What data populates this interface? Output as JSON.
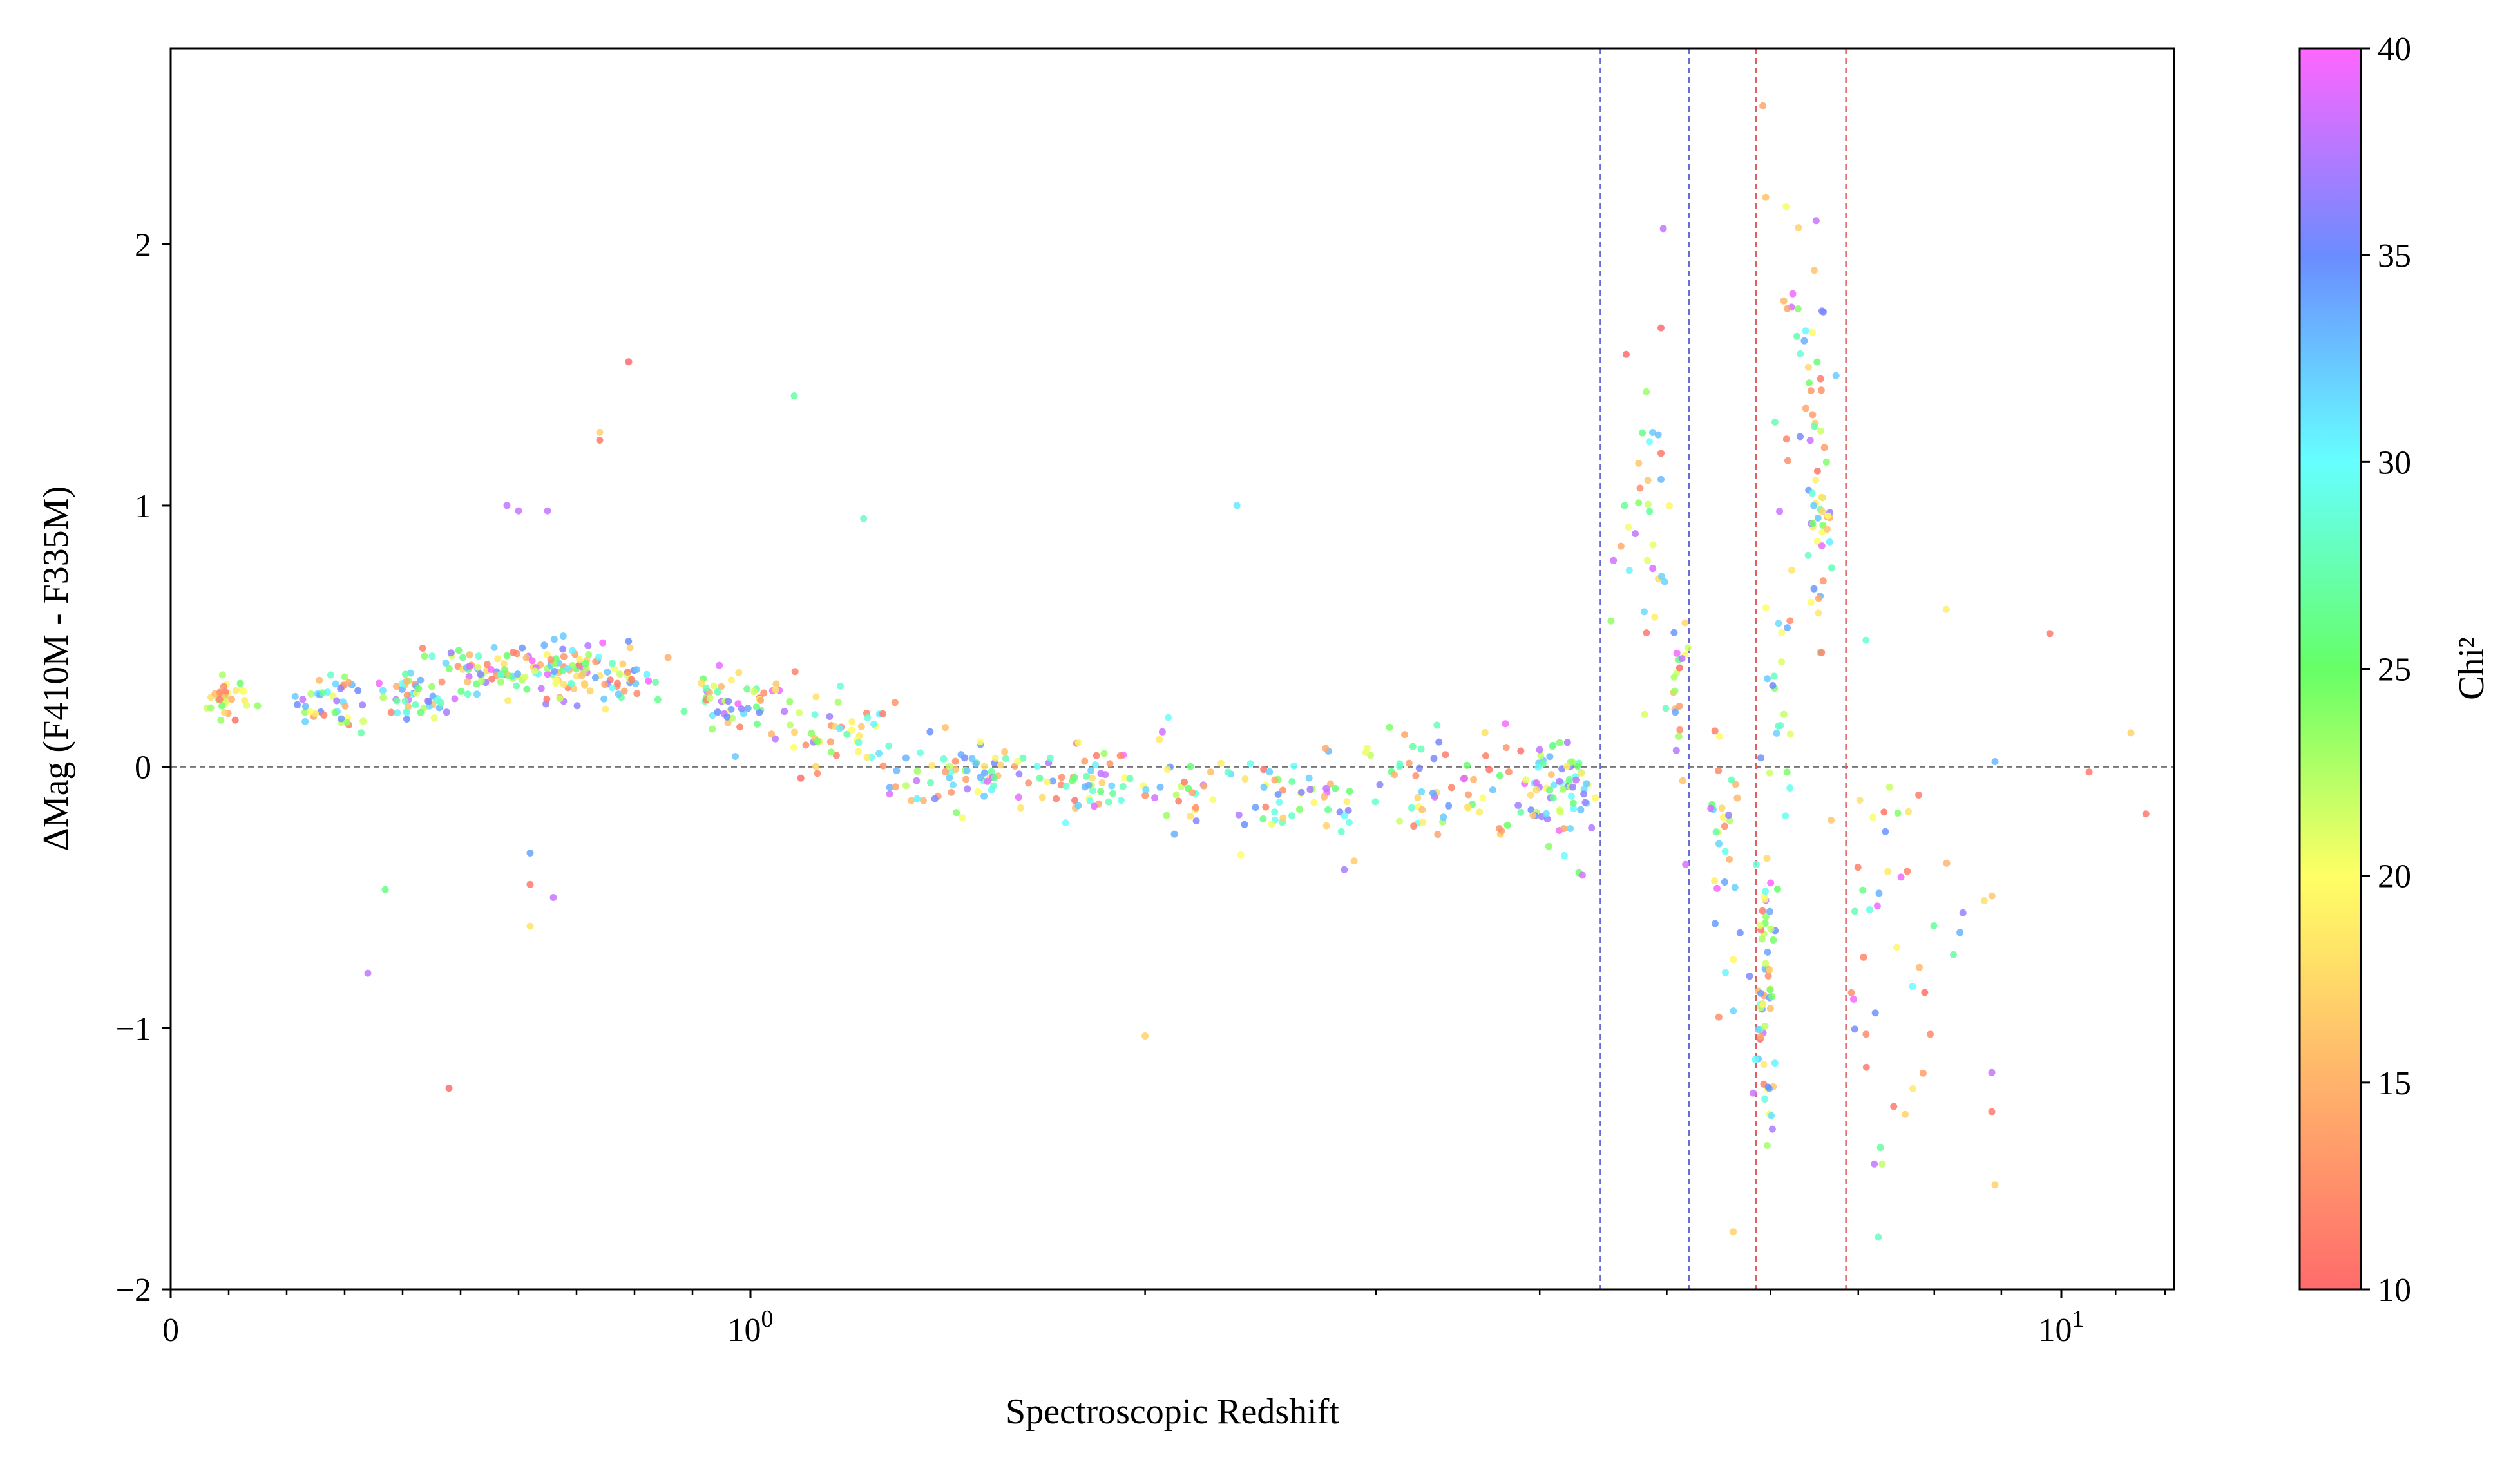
{
  "chart_data": {
    "type": "scatter",
    "title": "",
    "xlabel": "Spectroscopic Redshift",
    "ylabel": "ΔMag (F410M - F335M)",
    "colorbar_label": "Chi²",
    "x_scale": "symlog",
    "x_tick_labels": [
      "0",
      "10^0",
      "10^1"
    ],
    "ylim": [
      -2,
      2.75
    ],
    "y_ticks": [
      -2,
      -1,
      0,
      1,
      2
    ],
    "y_tick_labels": [
      "−2",
      "−1",
      "0",
      "1",
      "2"
    ],
    "colorbar_range": [
      10,
      40
    ],
    "colorbar_ticks": [
      10,
      15,
      20,
      25,
      30,
      35,
      40
    ],
    "colormap": [
      "#ff6b6b",
      "#ffb36b",
      "#ffff66",
      "#66ff66",
      "#66ffff",
      "#6b8cff",
      "#ff66ff"
    ],
    "reference_lines": {
      "horizontal_y": 0,
      "blue_vertical_x": [
        4.45,
        5.2
      ],
      "red_vertical_x": [
        5.85,
        6.85
      ]
    },
    "series": [
      {
        "clusters": [
          {
            "x": 0.1,
            "y": 0.27,
            "n": 30,
            "sx": 0.018,
            "sy": 0.05,
            "chi": [
              10,
              25
            ]
          },
          {
            "x": 0.28,
            "y": 0.25,
            "n": 40,
            "sx": 0.03,
            "sy": 0.06,
            "chi": [
              10,
              40
            ]
          },
          {
            "x": 0.42,
            "y": 0.28,
            "n": 50,
            "sx": 0.035,
            "sy": 0.06,
            "chi": [
              10,
              40
            ]
          },
          {
            "x": 0.54,
            "y": 0.38,
            "n": 40,
            "sx": 0.04,
            "sy": 0.05,
            "chi": [
              10,
              40
            ]
          },
          {
            "x": 0.66,
            "y": 0.37,
            "n": 80,
            "sx": 0.05,
            "sy": 0.05,
            "chi": [
              10,
              40
            ]
          },
          {
            "x": 0.78,
            "y": 0.36,
            "n": 40,
            "sx": 0.04,
            "sy": 0.06,
            "chi": [
              10,
              40
            ]
          },
          {
            "x": 0.98,
            "y": 0.25,
            "n": 50,
            "sx": 0.05,
            "sy": 0.05,
            "chi": [
              10,
              40
            ]
          },
          {
            "x": 1.15,
            "y": 0.12,
            "n": 50,
            "sx": 0.07,
            "sy": 0.07,
            "chi": [
              10,
              40
            ]
          },
          {
            "x": 1.45,
            "y": -0.03,
            "n": 60,
            "sx": 0.1,
            "sy": 0.06,
            "chi": [
              10,
              40
            ]
          },
          {
            "x": 1.75,
            "y": -0.05,
            "n": 50,
            "sx": 0.12,
            "sy": 0.07,
            "chi": [
              10,
              40
            ]
          },
          {
            "x": 2.2,
            "y": -0.1,
            "n": 50,
            "sx": 0.18,
            "sy": 0.1,
            "chi": [
              10,
              40
            ]
          },
          {
            "x": 2.7,
            "y": -0.12,
            "n": 40,
            "sx": 0.2,
            "sy": 0.1,
            "chi": [
              10,
              40
            ]
          },
          {
            "x": 3.3,
            "y": -0.05,
            "n": 40,
            "sx": 0.22,
            "sy": 0.1,
            "chi": [
              10,
              40
            ]
          },
          {
            "x": 3.8,
            "y": -0.07,
            "n": 40,
            "sx": 0.25,
            "sy": 0.12,
            "chi": [
              10,
              40
            ]
          },
          {
            "x": 4.2,
            "y": -0.1,
            "n": 50,
            "sx": 0.12,
            "sy": 0.12,
            "chi": [
              10,
              40
            ]
          },
          {
            "x": 4.8,
            "y": 1.0,
            "n": 30,
            "sx": 0.12,
            "sy": 0.35,
            "chi": [
              10,
              40
            ]
          },
          {
            "x": 5.1,
            "y": 0.3,
            "n": 20,
            "sx": 0.06,
            "sy": 0.2,
            "chi": [
              10,
              40
            ]
          },
          {
            "x": 5.5,
            "y": -0.3,
            "n": 30,
            "sx": 0.12,
            "sy": 0.25,
            "chi": [
              10,
              40
            ]
          },
          {
            "x": 5.95,
            "y": -0.85,
            "n": 60,
            "sx": 0.06,
            "sy": 0.3,
            "chi": [
              10,
              40
            ]
          },
          {
            "x": 6.05,
            "y": 0.3,
            "n": 20,
            "sx": 0.1,
            "sy": 0.2,
            "chi": [
              10,
              40
            ]
          },
          {
            "x": 6.3,
            "y": 1.5,
            "n": 25,
            "sx": 0.12,
            "sy": 0.35,
            "chi": [
              10,
              40
            ]
          },
          {
            "x": 6.55,
            "y": 1.15,
            "n": 45,
            "sx": 0.08,
            "sy": 0.35,
            "chi": [
              10,
              40
            ]
          },
          {
            "x": 7.3,
            "y": -0.6,
            "n": 30,
            "sx": 0.35,
            "sy": 0.5,
            "chi": [
              10,
              40
            ]
          },
          {
            "x": 8.4,
            "y": -0.6,
            "n": 10,
            "sx": 0.4,
            "sy": 0.5,
            "chi": [
              10,
              40
            ]
          }
        ],
        "points": [
          {
            "x": 0.79,
            "y": 1.55,
            "chi": 10
          },
          {
            "x": 0.74,
            "y": 1.28,
            "chi": 17
          },
          {
            "x": 0.74,
            "y": 1.25,
            "chi": 11
          },
          {
            "x": 1.08,
            "y": 1.42,
            "chi": 27
          },
          {
            "x": 1.22,
            "y": 0.95,
            "chi": 28
          },
          {
            "x": 0.58,
            "y": 1.0,
            "chi": 38
          },
          {
            "x": 0.6,
            "y": 0.98,
            "chi": 38
          },
          {
            "x": 0.65,
            "y": 0.98,
            "chi": 38
          },
          {
            "x": 2.35,
            "y": 1.0,
            "chi": 31
          },
          {
            "x": 0.48,
            "y": -1.23,
            "chi": 10
          },
          {
            "x": 0.34,
            "y": -0.79,
            "chi": 38
          },
          {
            "x": 0.37,
            "y": -0.47,
            "chi": 26
          },
          {
            "x": 0.62,
            "y": -0.61,
            "chi": 18
          },
          {
            "x": 0.62,
            "y": -0.33,
            "chi": 34
          },
          {
            "x": 0.62,
            "y": -0.45,
            "chi": 11
          },
          {
            "x": 0.66,
            "y": -0.5,
            "chi": 38
          },
          {
            "x": 2.0,
            "y": -1.03,
            "chi": 17
          },
          {
            "x": 9.8,
            "y": 0.51,
            "chi": 11
          },
          {
            "x": 10.5,
            "y": -0.02,
            "chi": 11
          },
          {
            "x": 11.3,
            "y": 0.13,
            "chi": 17
          },
          {
            "x": 11.6,
            "y": -0.18,
            "chi": 11
          },
          {
            "x": 5.92,
            "y": 2.53,
            "chi": 14
          },
          {
            "x": 5.95,
            "y": 2.18,
            "chi": 16
          },
          {
            "x": 4.97,
            "y": 2.06,
            "chi": 38
          },
          {
            "x": 6.5,
            "y": 2.09,
            "chi": 38
          },
          {
            "x": 5.62,
            "y": -1.78,
            "chi": 17
          },
          {
            "x": 7.25,
            "y": -1.8,
            "chi": 28
          },
          {
            "x": 8.9,
            "y": -1.6,
            "chi": 17
          },
          {
            "x": 7.3,
            "y": -1.52,
            "chi": 22
          },
          {
            "x": 7.2,
            "y": -1.52,
            "chi": 38
          },
          {
            "x": 8.85,
            "y": -1.32,
            "chi": 11
          },
          {
            "x": 8.85,
            "y": -1.17,
            "chi": 38
          },
          {
            "x": 7.6,
            "y": -1.33,
            "chi": 17
          },
          {
            "x": 7.45,
            "y": -1.3,
            "chi": 11
          },
          {
            "x": 7.7,
            "y": -0.84,
            "chi": 30
          },
          {
            "x": 7.1,
            "y": -1.15,
            "chi": 11
          },
          {
            "x": 4.95,
            "y": 1.68,
            "chi": 10
          },
          {
            "x": 4.95,
            "y": 1.1,
            "chi": 33
          },
          {
            "x": 4.95,
            "y": 1.2,
            "chi": 11
          },
          {
            "x": 8.9,
            "y": 0.02,
            "chi": 33
          }
        ]
      }
    ]
  }
}
